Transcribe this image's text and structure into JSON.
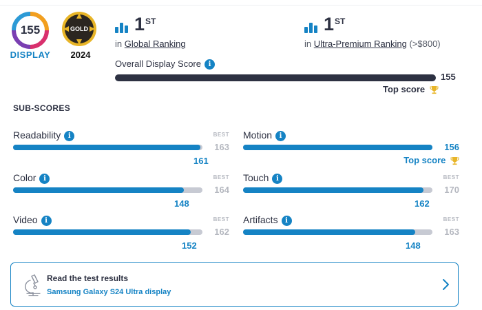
{
  "badges": {
    "score": "155",
    "score_caption": "DISPLAY",
    "medal": "GOLD",
    "year": "2024"
  },
  "rankings": {
    "global": {
      "rank": "1",
      "suffix": "ST",
      "prefix": "in",
      "link": "Global Ranking",
      "extra": ""
    },
    "premium": {
      "rank": "1",
      "suffix": "ST",
      "prefix": "in",
      "link": "Ultra-Premium Ranking",
      "extra": "(>$800)"
    }
  },
  "overall": {
    "label": "Overall Display Score",
    "info_icon": "i",
    "value": "155",
    "fill": 1.0,
    "top_score_label": "Top score"
  },
  "subscores_title": "SUB-SCORES",
  "subscores": [
    {
      "label": "Readability",
      "value": "161",
      "best_label": "BEST",
      "best": "163",
      "fill": 0.988,
      "top_score": ""
    },
    {
      "label": "Motion",
      "value": "156",
      "best_label": "",
      "best": "",
      "fill": 1.0,
      "top_score": "Top score"
    },
    {
      "label": "Color",
      "value": "148",
      "best_label": "BEST",
      "best": "164",
      "fill": 0.902,
      "top_score": ""
    },
    {
      "label": "Touch",
      "value": "162",
      "best_label": "BEST",
      "best": "170",
      "fill": 0.953,
      "top_score": ""
    },
    {
      "label": "Video",
      "value": "152",
      "best_label": "BEST",
      "best": "162",
      "fill": 0.938,
      "top_score": ""
    },
    {
      "label": "Artifacts",
      "value": "148",
      "best_label": "BEST",
      "best": "163",
      "fill": 0.908,
      "top_score": ""
    }
  ],
  "test_card": {
    "title": "Read the test results",
    "link": "Samsung Galaxy S24 Ultra display"
  },
  "colors": {
    "accent": "#1583c4",
    "dark": "#2d3142",
    "track": "#c7cad3",
    "gold": "#e8b528"
  }
}
